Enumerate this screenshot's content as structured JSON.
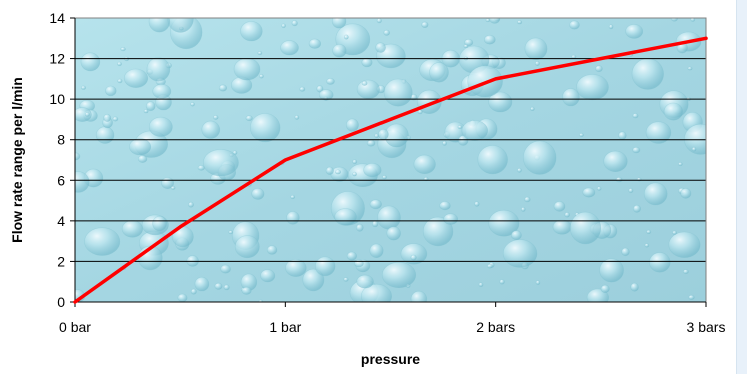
{
  "chart_data": {
    "type": "line",
    "title": "",
    "xlabel": "pressure",
    "ylabel": "Flow rate range per l/min",
    "categories": [
      "0 bar",
      "1 bar",
      "2 bars",
      "3 bars"
    ],
    "x": [
      0,
      0.5,
      1,
      1.5,
      2,
      3
    ],
    "series": [
      {
        "values": [
          0,
          3.7,
          7,
          9,
          11,
          13
        ],
        "color": "#ff0000"
      }
    ],
    "ylim": [
      0,
      14
    ],
    "yticks": [
      0,
      2,
      4,
      6,
      8,
      10,
      12,
      14
    ],
    "xlim": [
      0,
      3
    ],
    "grid": true,
    "legend": "none",
    "background": "water-droplet texture",
    "colors": {
      "plot_bg": "#a8dbe6",
      "gridline": "#000000",
      "line": "#ff0000"
    }
  }
}
